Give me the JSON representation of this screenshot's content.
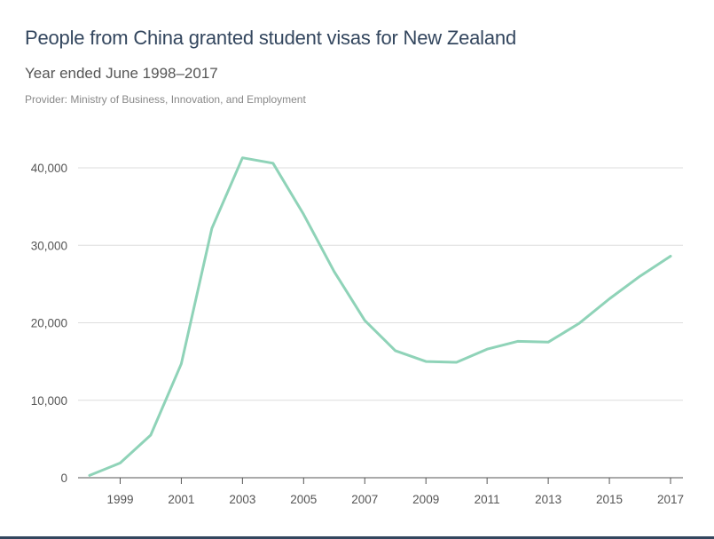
{
  "header": {
    "title": "People from China granted student visas for New Zealand",
    "subtitle": "Year ended June 1998–2017",
    "provider": "Provider: Ministry of Business, Innovation, and Employment"
  },
  "chart_data": {
    "type": "line",
    "title": "People from China granted student visas for New Zealand",
    "subtitle": "Year ended June 1998–2017",
    "xlabel": "",
    "ylabel": "",
    "ylim": [
      0,
      40000
    ],
    "xlim": [
      1998,
      2017
    ],
    "yticks": [
      0,
      10000,
      20000,
      30000,
      40000
    ],
    "ytick_labels": [
      "0",
      "10,000",
      "20,000",
      "30,000",
      "40,000"
    ],
    "xticks": [
      1999,
      2001,
      2003,
      2005,
      2007,
      2009,
      2011,
      2013,
      2015,
      2017
    ],
    "xtick_labels": [
      "1999",
      "2001",
      "2003",
      "2005",
      "2007",
      "2009",
      "2011",
      "2013",
      "2015",
      "2017"
    ],
    "grid": true,
    "legend": "none",
    "color": "#8fd3b8",
    "series": [
      {
        "x": [
          1998,
          1999,
          2000,
          2001,
          2002,
          2003,
          2004,
          2005,
          2006,
          2007,
          2008,
          2009,
          2010,
          2011,
          2012,
          2013,
          2014,
          2015,
          2016,
          2017
        ],
        "values": [
          300,
          1900,
          5500,
          14700,
          32200,
          41300,
          40600,
          34000,
          26600,
          20300,
          16400,
          15000,
          14900,
          16600,
          17600,
          17500,
          19900,
          23100,
          26000,
          28600
        ]
      }
    ]
  }
}
